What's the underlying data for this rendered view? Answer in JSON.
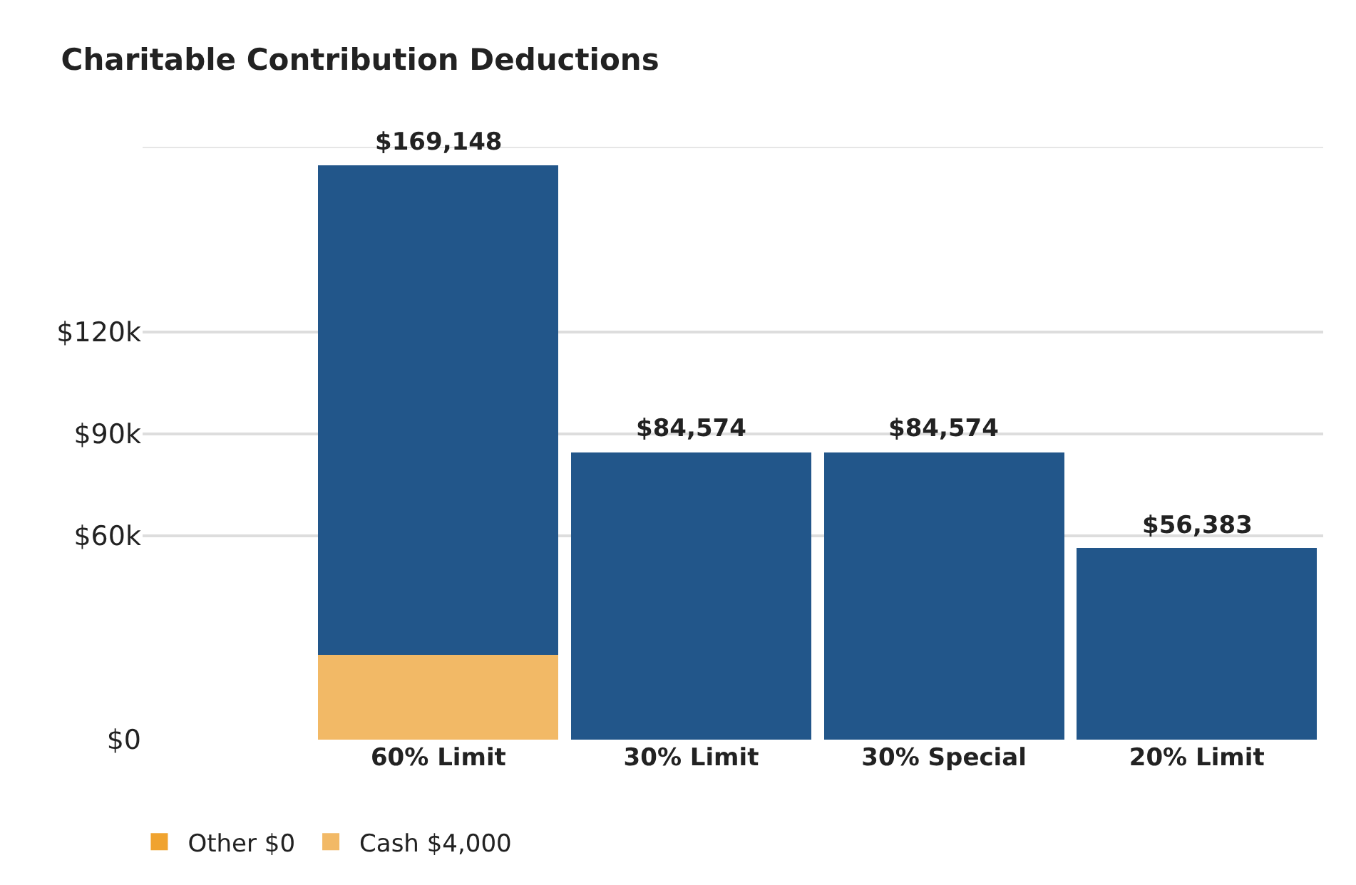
{
  "chart_data": {
    "type": "bar",
    "title": "Charitable Contribution Deductions",
    "categories": [
      "60% Limit",
      "30% Limit",
      "30% Special",
      "20% Limit"
    ],
    "stacked": true,
    "series": [
      {
        "name": "Cash $4,000",
        "color": "#f2b966",
        "values": [
          25000,
          null,
          null,
          null
        ]
      },
      {
        "name": "Other $0",
        "color": "#f0a32f",
        "values": [
          null,
          null,
          null,
          null
        ]
      },
      {
        "color": "#22568a",
        "values": [
          144148,
          84574,
          84574,
          56383
        ]
      }
    ],
    "totals": [
      "$169,148",
      "$84,574",
      "$84,574",
      "$56,383"
    ],
    "ylim": [
      0,
      174500
    ],
    "yticks": [
      {
        "value": 0,
        "label": "$0"
      },
      {
        "value": 60000,
        "label": "$60k"
      },
      {
        "value": 90000,
        "label": "$90k"
      },
      {
        "value": 120000,
        "label": "$120k"
      }
    ],
    "grid": "y",
    "legend": "bottom left"
  }
}
